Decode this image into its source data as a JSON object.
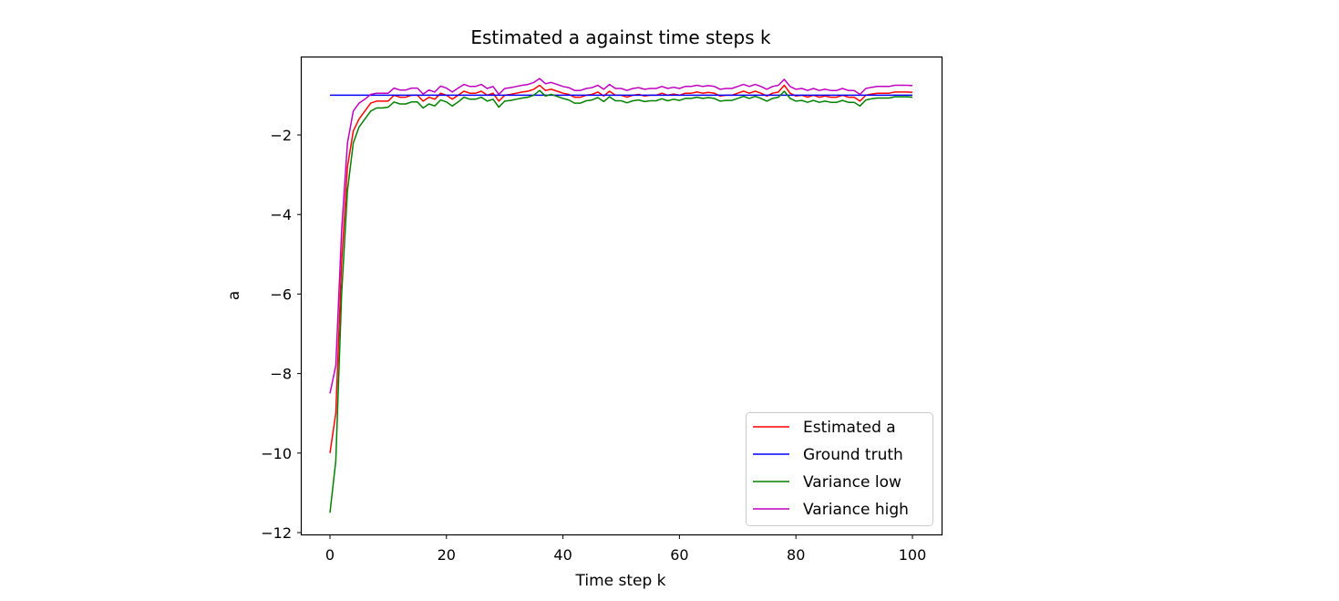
{
  "chart_data": {
    "type": "line",
    "title": "Estimated a against time steps k",
    "xlabel": "Time step k",
    "ylabel": "a",
    "xlim": [
      -5,
      105
    ],
    "ylim": [
      -12.1,
      -0.05
    ],
    "xticks": [
      0,
      20,
      40,
      60,
      80,
      100
    ],
    "yticks": [
      -12,
      -10,
      -8,
      -6,
      -4,
      -2
    ],
    "ytick_labels": [
      "−12",
      "−10",
      "−8",
      "−6",
      "−4",
      "−2"
    ],
    "grid": false,
    "legend_position": "lower right",
    "x": [
      0,
      1,
      2,
      3,
      4,
      5,
      6,
      7,
      8,
      9,
      10,
      11,
      12,
      13,
      14,
      15,
      16,
      17,
      18,
      19,
      20,
      21,
      22,
      23,
      24,
      25,
      26,
      27,
      28,
      29,
      30,
      31,
      32,
      33,
      34,
      35,
      36,
      37,
      38,
      39,
      40,
      41,
      42,
      43,
      44,
      45,
      46,
      47,
      48,
      49,
      50,
      51,
      52,
      53,
      54,
      55,
      56,
      57,
      58,
      59,
      60,
      61,
      62,
      63,
      64,
      65,
      66,
      67,
      68,
      69,
      70,
      71,
      72,
      73,
      74,
      75,
      76,
      77,
      78,
      79,
      80,
      81,
      82,
      83,
      84,
      85,
      86,
      87,
      88,
      89,
      90,
      91,
      92,
      93,
      94,
      95,
      96,
      97,
      98,
      99,
      100
    ],
    "series": [
      {
        "name": "Estimated a",
        "color": "#ff0000",
        "values": [
          -10.0,
          -9.0,
          -5.2,
          -2.8,
          -1.9,
          -1.6,
          -1.4,
          -1.2,
          -1.15,
          -1.15,
          -1.15,
          -1.0,
          -1.05,
          -1.05,
          -1.0,
          -1.0,
          -1.15,
          -1.05,
          -1.1,
          -0.95,
          -1.0,
          -1.1,
          -1.0,
          -0.9,
          -0.95,
          -0.95,
          -0.9,
          -1.0,
          -0.95,
          -1.15,
          -1.0,
          -0.98,
          -0.95,
          -0.92,
          -0.9,
          -0.85,
          -0.75,
          -0.88,
          -0.85,
          -0.9,
          -0.95,
          -0.98,
          -1.05,
          -1.05,
          -1.0,
          -0.98,
          -0.92,
          -1.02,
          -0.9,
          -1.0,
          -1.0,
          -1.05,
          -1.0,
          -0.98,
          -1.02,
          -1.0,
          -1.0,
          -0.95,
          -1.0,
          -0.97,
          -1.0,
          -0.95,
          -0.95,
          -0.92,
          -0.95,
          -0.93,
          -0.95,
          -1.02,
          -1.0,
          -1.0,
          -0.95,
          -0.9,
          -0.95,
          -0.9,
          -0.95,
          -1.02,
          -0.95,
          -0.92,
          -0.75,
          -0.95,
          -1.02,
          -1.0,
          -1.05,
          -1.0,
          -1.05,
          -1.02,
          -1.05,
          -1.05,
          -1.0,
          -1.05,
          -1.05,
          -1.15,
          -1.0,
          -0.97,
          -0.95,
          -0.95,
          -0.95,
          -0.92,
          -0.92,
          -0.92,
          -0.93
        ]
      },
      {
        "name": "Ground truth",
        "color": "#0000ff",
        "values": [
          -1,
          -1,
          -1,
          -1,
          -1,
          -1,
          -1,
          -1,
          -1,
          -1,
          -1,
          -1,
          -1,
          -1,
          -1,
          -1,
          -1,
          -1,
          -1,
          -1,
          -1,
          -1,
          -1,
          -1,
          -1,
          -1,
          -1,
          -1,
          -1,
          -1,
          -1,
          -1,
          -1,
          -1,
          -1,
          -1,
          -1,
          -1,
          -1,
          -1,
          -1,
          -1,
          -1,
          -1,
          -1,
          -1,
          -1,
          -1,
          -1,
          -1,
          -1,
          -1,
          -1,
          -1,
          -1,
          -1,
          -1,
          -1,
          -1,
          -1,
          -1,
          -1,
          -1,
          -1,
          -1,
          -1,
          -1,
          -1,
          -1,
          -1,
          -1,
          -1,
          -1,
          -1,
          -1,
          -1,
          -1,
          -1,
          -1,
          -1,
          -1,
          -1,
          -1,
          -1,
          -1,
          -1,
          -1,
          -1,
          -1,
          -1,
          -1,
          -1,
          -1,
          -1,
          -1,
          -1,
          -1,
          -1,
          -1,
          -1,
          -1
        ]
      },
      {
        "name": "Variance low",
        "color": "#008000",
        "values": [
          -11.5,
          -10.2,
          -6.0,
          -3.4,
          -2.2,
          -1.8,
          -1.6,
          -1.4,
          -1.32,
          -1.32,
          -1.3,
          -1.17,
          -1.22,
          -1.22,
          -1.17,
          -1.17,
          -1.32,
          -1.22,
          -1.27,
          -1.12,
          -1.17,
          -1.27,
          -1.17,
          -1.05,
          -1.1,
          -1.1,
          -1.05,
          -1.15,
          -1.1,
          -1.3,
          -1.15,
          -1.13,
          -1.1,
          -1.07,
          -1.05,
          -1.0,
          -0.88,
          -1.02,
          -0.98,
          -1.03,
          -1.08,
          -1.12,
          -1.2,
          -1.2,
          -1.14,
          -1.12,
          -1.06,
          -1.16,
          -1.04,
          -1.14,
          -1.14,
          -1.19,
          -1.14,
          -1.12,
          -1.16,
          -1.14,
          -1.14,
          -1.09,
          -1.14,
          -1.1,
          -1.13,
          -1.08,
          -1.08,
          -1.05,
          -1.08,
          -1.06,
          -1.08,
          -1.15,
          -1.13,
          -1.13,
          -1.08,
          -1.03,
          -1.08,
          -1.03,
          -1.08,
          -1.15,
          -1.08,
          -1.05,
          -0.9,
          -1.08,
          -1.15,
          -1.13,
          -1.18,
          -1.13,
          -1.18,
          -1.15,
          -1.18,
          -1.18,
          -1.13,
          -1.18,
          -1.18,
          -1.27,
          -1.12,
          -1.09,
          -1.07,
          -1.07,
          -1.07,
          -1.04,
          -1.04,
          -1.04,
          -1.05
        ]
      },
      {
        "name": "Variance high",
        "color": "#bf00bf",
        "values": [
          -8.5,
          -7.8,
          -4.4,
          -2.2,
          -1.4,
          -1.2,
          -1.1,
          -0.98,
          -0.95,
          -0.95,
          -0.95,
          -0.82,
          -0.87,
          -0.87,
          -0.82,
          -0.82,
          -0.97,
          -0.87,
          -0.92,
          -0.77,
          -0.82,
          -0.92,
          -0.82,
          -0.73,
          -0.78,
          -0.78,
          -0.73,
          -0.83,
          -0.78,
          -0.98,
          -0.83,
          -0.81,
          -0.78,
          -0.75,
          -0.73,
          -0.68,
          -0.58,
          -0.71,
          -0.68,
          -0.73,
          -0.78,
          -0.81,
          -0.88,
          -0.88,
          -0.83,
          -0.81,
          -0.75,
          -0.85,
          -0.73,
          -0.83,
          -0.83,
          -0.88,
          -0.83,
          -0.81,
          -0.85,
          -0.83,
          -0.83,
          -0.78,
          -0.83,
          -0.8,
          -0.83,
          -0.78,
          -0.78,
          -0.75,
          -0.78,
          -0.76,
          -0.78,
          -0.85,
          -0.83,
          -0.83,
          -0.78,
          -0.73,
          -0.78,
          -0.73,
          -0.78,
          -0.85,
          -0.78,
          -0.75,
          -0.6,
          -0.78,
          -0.85,
          -0.83,
          -0.88,
          -0.83,
          -0.88,
          -0.85,
          -0.88,
          -0.88,
          -0.83,
          -0.88,
          -0.88,
          -0.98,
          -0.83,
          -0.8,
          -0.78,
          -0.78,
          -0.78,
          -0.75,
          -0.75,
          -0.75,
          -0.76
        ]
      }
    ]
  }
}
